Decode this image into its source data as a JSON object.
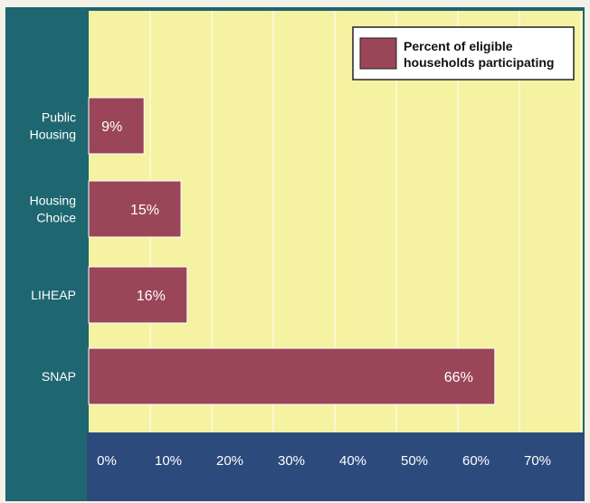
{
  "chart_data": {
    "type": "bar",
    "orientation": "horizontal",
    "categories": [
      [
        "Public",
        "Housing"
      ],
      [
        "Housing",
        "Choice"
      ],
      [
        "LIHEAP"
      ],
      [
        "SNAP"
      ]
    ],
    "series": [
      {
        "name": "Percent of eligible households participating",
        "values": [
          9,
          15,
          16,
          66
        ]
      }
    ],
    "value_labels": [
      "9%",
      "15%",
      "16%",
      "66%"
    ],
    "legend": {
      "lines": [
        "Percent of eligible",
        "households participating"
      ],
      "position": "top-right"
    },
    "x_ticks": [
      0,
      10,
      20,
      30,
      40,
      50,
      60,
      70
    ],
    "x_tick_labels": [
      "0%",
      "10%",
      "20%",
      "30%",
      "40%",
      "50%",
      "60%",
      "70%"
    ],
    "xlim": [
      0,
      80
    ],
    "grid": true,
    "colors": {
      "page": "#f4f1e8",
      "frame": "#1e6670",
      "axis_band": "#2c4a7c",
      "plot_bg": "#f5f2a2",
      "grid": "#fbfae0",
      "bar": "#9a4658",
      "bar_edge": "#ffffff",
      "label_text": "#ffffff",
      "legend_bg": "#ffffff",
      "legend_border": "#222222",
      "legend_text": "#111111"
    }
  }
}
